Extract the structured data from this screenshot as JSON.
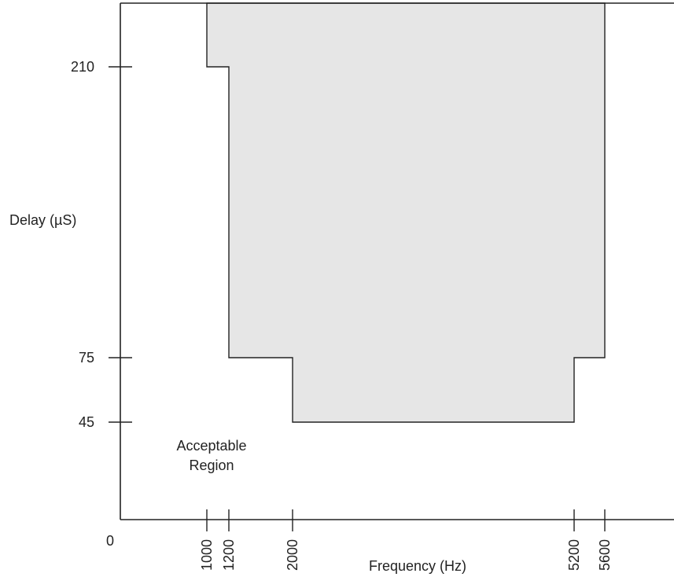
{
  "chart_data": {
    "type": "area",
    "title": "",
    "xlabel": "Frequency (Hz)",
    "ylabel": "Delay (µS)",
    "origin_label": "0",
    "x_ticks": [
      1000,
      1200,
      2000,
      5200,
      5600
    ],
    "x_tick_labels": [
      "1000",
      "1200",
      "2000",
      "5200",
      "5600"
    ],
    "y_ticks": [
      45,
      75,
      210
    ],
    "y_tick_labels": [
      "45",
      "75",
      "210"
    ],
    "region": {
      "fill_color": "#e6e6e6",
      "stroke_color": "#222222",
      "boundary": [
        {
          "x": 1000,
          "y": "top"
        },
        {
          "x": 1000,
          "y": 210
        },
        {
          "x": 1200,
          "y": 210
        },
        {
          "x": 1200,
          "y": 75
        },
        {
          "x": 2000,
          "y": 75
        },
        {
          "x": 2000,
          "y": 45
        },
        {
          "x": 5200,
          "y": 45
        },
        {
          "x": 5200,
          "y": 75
        },
        {
          "x": 5600,
          "y": 75
        },
        {
          "x": 5600,
          "y": "top"
        }
      ]
    },
    "annotation": {
      "lines": [
        "Acceptable",
        "Region"
      ],
      "x": 1000,
      "y": 28
    },
    "grid": false,
    "legend": "none"
  }
}
